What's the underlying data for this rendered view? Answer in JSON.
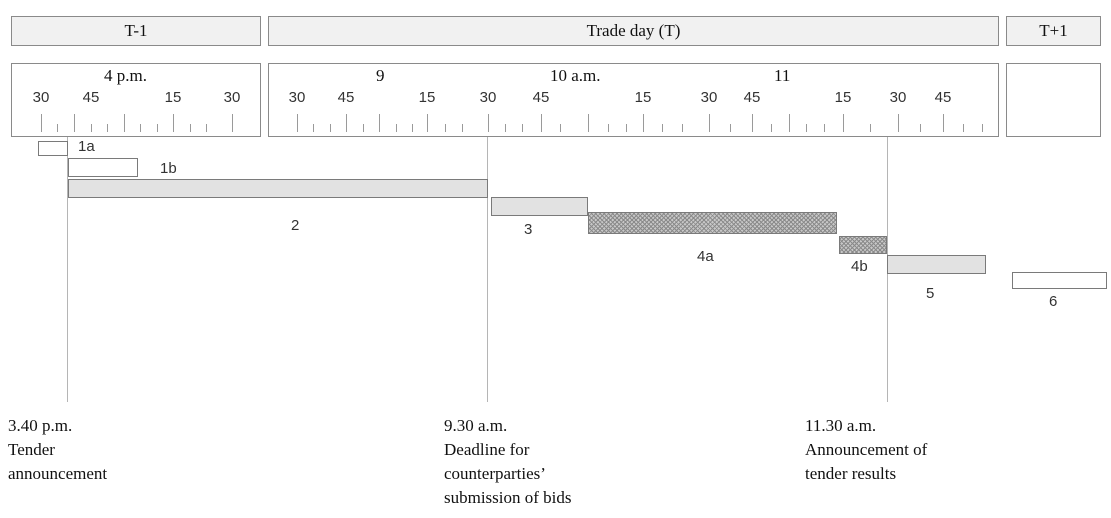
{
  "headers": {
    "t_minus_1": "T-1",
    "trade_day": "Trade day (T)",
    "t_plus_1": "T+1"
  },
  "hour_labels": {
    "h4pm": "4 p.m.",
    "h9": "9",
    "h10am": "10 a.m.",
    "h11": "11"
  },
  "minute_labels": [
    "30",
    "45",
    "15",
    "30",
    "30",
    "45",
    "15",
    "30",
    "45",
    "15",
    "30",
    "45",
    "15",
    "30",
    "45"
  ],
  "bars": [
    {
      "id": "1a",
      "label": "1a",
      "style": "white"
    },
    {
      "id": "1b",
      "label": "1b",
      "style": "white"
    },
    {
      "id": "2",
      "label": "2",
      "style": "grey"
    },
    {
      "id": "3",
      "label": "3",
      "style": "grey"
    },
    {
      "id": "4a",
      "label": "4a",
      "style": "hatched"
    },
    {
      "id": "4b",
      "label": "4b",
      "style": "hatched"
    },
    {
      "id": "5",
      "label": "5",
      "style": "grey"
    },
    {
      "id": "6",
      "label": "6",
      "style": "white"
    }
  ],
  "annotations": {
    "tender_announcement": {
      "time": "3.40 p.m.",
      "line1": "Tender",
      "line2": "announcement"
    },
    "bid_deadline": {
      "time": "9.30 a.m.",
      "line1": "Deadline for",
      "line2": "counterparties’",
      "line3": "submission of bids"
    },
    "results": {
      "time": "11.30 a.m.",
      "line1": "Announcement of",
      "line2": "tender results"
    }
  },
  "colors": {
    "header_fill": "#f1f1f1",
    "bar_grey": "#e2e2e2",
    "bar_hatched": "#c8c8c8",
    "border": "#8a8a8a"
  }
}
